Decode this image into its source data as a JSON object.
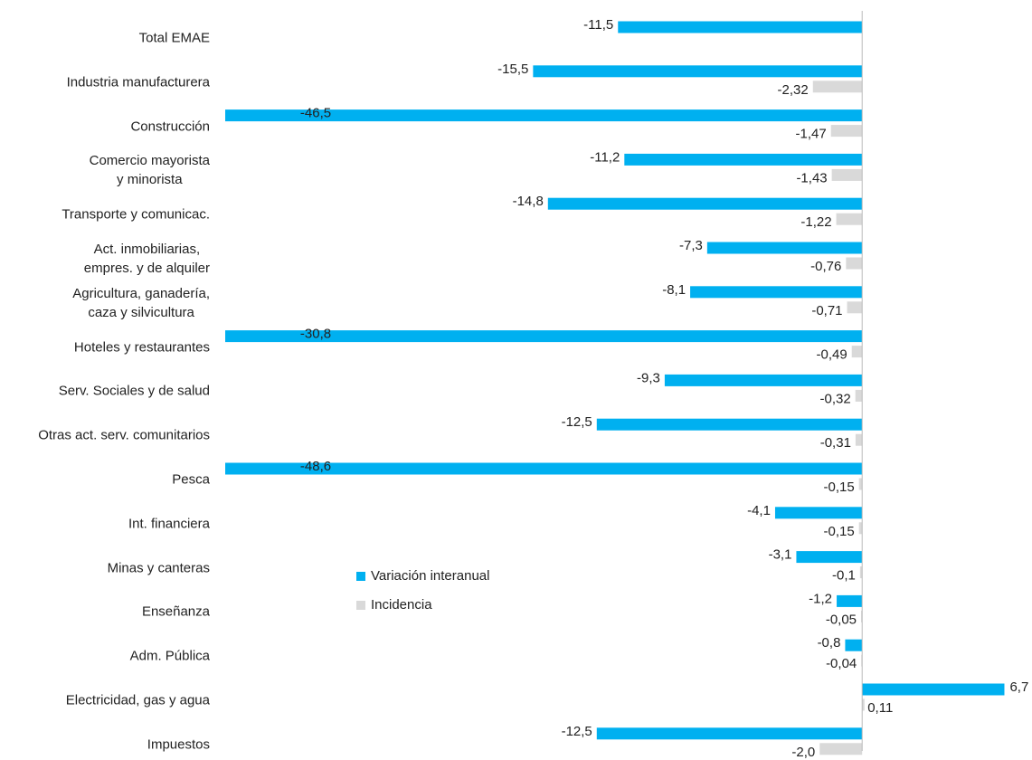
{
  "chart_data": {
    "type": "bar",
    "orientation": "horizontal",
    "categories": [
      "Total EMAE",
      "Industria manufacturera",
      "Construcción",
      "Comercio mayorista\ny minorista",
      "Transporte y comunicac.",
      "Act. inmobiliarias,\nempres. y de alquiler",
      "Agricultura, ganadería,\ncaza y silvicultura",
      "Hoteles y restaurantes",
      "Serv. Sociales y de salud",
      "Otras act. serv. comunitarios",
      "Pesca",
      "Int. financiera",
      "Minas y canteras",
      "Enseñanza",
      "Adm. Pública",
      "Electricidad, gas y agua",
      "Impuestos"
    ],
    "series": [
      {
        "name": "Variación interanual",
        "color": "#00b0f0",
        "values": [
          -11.5,
          -15.5,
          -46.5,
          -11.2,
          -14.8,
          -7.3,
          -8.1,
          -30.8,
          -9.3,
          -12.5,
          -48.6,
          -4.1,
          -3.1,
          -1.2,
          -0.8,
          6.7,
          -12.5
        ],
        "value_labels": [
          "-11,5",
          "-15,5",
          "-46,5",
          "-11,2",
          "-14,8",
          "-7,3",
          "-8,1",
          "-30,8",
          "-9,3",
          "-12,5",
          "-48,6",
          "-4,1",
          "-3,1",
          "-1,2",
          "-0,8",
          "6,7",
          "-12,5"
        ]
      },
      {
        "name": "Incidencia",
        "color": "#d9d9d9",
        "values": [
          null,
          -2.32,
          -1.47,
          -1.43,
          -1.22,
          -0.76,
          -0.71,
          -0.49,
          -0.32,
          -0.31,
          -0.15,
          -0.15,
          -0.1,
          -0.05,
          -0.04,
          0.11,
          -2.0
        ],
        "value_labels": [
          null,
          "-2,32",
          "-1,47",
          "-1,43",
          "-1,22",
          "-0,76",
          "-0,71",
          "-0,49",
          "-0,32",
          "-0,31",
          "-0,15",
          "-0,15",
          "-0,1",
          "-0,05",
          "-0,04",
          "0,11",
          "-2,0"
        ]
      }
    ],
    "xlim": [
      -30,
      8
    ],
    "legend": "center"
  }
}
